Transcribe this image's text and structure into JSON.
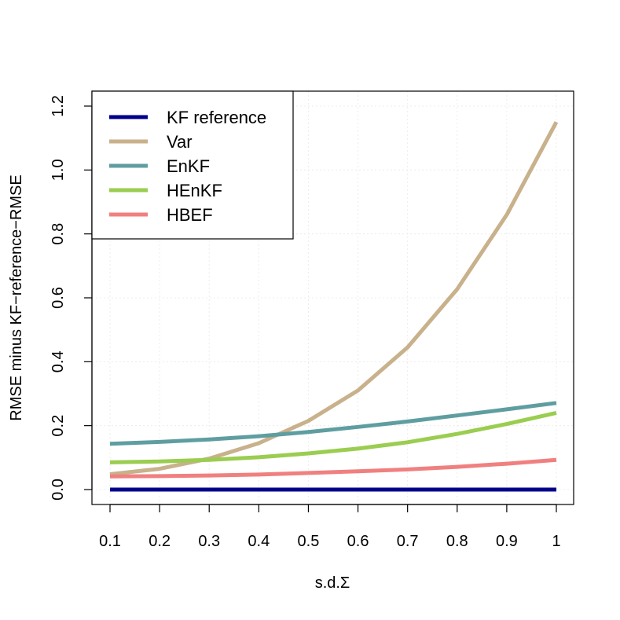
{
  "chart_data": {
    "type": "line",
    "xlabel": "s.d.Σ",
    "ylabel": "RMSE minus KF−reference−RMSE",
    "x": [
      0.1,
      0.2,
      0.3,
      0.4,
      0.5,
      0.6,
      0.7,
      0.8,
      0.9,
      1.0
    ],
    "xlim": [
      0.1,
      1.0
    ],
    "ylim": [
      0.0,
      1.2
    ],
    "x_ticks": [
      {
        "value": 0.1,
        "label": "0.1"
      },
      {
        "value": 0.2,
        "label": "0.2"
      },
      {
        "value": 0.3,
        "label": "0.3"
      },
      {
        "value": 0.4,
        "label": "0.4"
      },
      {
        "value": 0.5,
        "label": "0.5"
      },
      {
        "value": 0.6,
        "label": "0.6"
      },
      {
        "value": 0.7,
        "label": "0.7"
      },
      {
        "value": 0.8,
        "label": "0.8"
      },
      {
        "value": 0.9,
        "label": "0.9"
      },
      {
        "value": 1.0,
        "label": "1"
      }
    ],
    "y_ticks": [
      {
        "value": 0.0,
        "label": "0.0"
      },
      {
        "value": 0.2,
        "label": "0.2"
      },
      {
        "value": 0.4,
        "label": "0.4"
      },
      {
        "value": 0.6,
        "label": "0.6"
      },
      {
        "value": 0.8,
        "label": "0.8"
      },
      {
        "value": 1.0,
        "label": "1.0"
      },
      {
        "value": 1.2,
        "label": "1.2"
      }
    ],
    "grid": true,
    "legend_position": "top-left",
    "series": [
      {
        "name": "KF reference",
        "color": "#00008b",
        "values": [
          0.0,
          0.0,
          0.0,
          0.0,
          0.0,
          0.0,
          0.0,
          0.0,
          0.0,
          0.0
        ]
      },
      {
        "name": "Var",
        "color": "#c8b18b",
        "values": [
          0.048,
          0.065,
          0.097,
          0.145,
          0.215,
          0.31,
          0.445,
          0.627,
          0.86,
          1.15
        ]
      },
      {
        "name": "EnKF",
        "color": "#5f9ea0",
        "values": [
          0.143,
          0.149,
          0.157,
          0.167,
          0.18,
          0.196,
          0.213,
          0.232,
          0.251,
          0.271
        ]
      },
      {
        "name": "HEnKF",
        "color": "#9acd50",
        "values": [
          0.085,
          0.088,
          0.093,
          0.101,
          0.113,
          0.128,
          0.148,
          0.174,
          0.205,
          0.24
        ]
      },
      {
        "name": "HBEF",
        "color": "#f08080",
        "values": [
          0.041,
          0.042,
          0.044,
          0.047,
          0.052,
          0.057,
          0.063,
          0.071,
          0.081,
          0.093
        ]
      }
    ]
  }
}
